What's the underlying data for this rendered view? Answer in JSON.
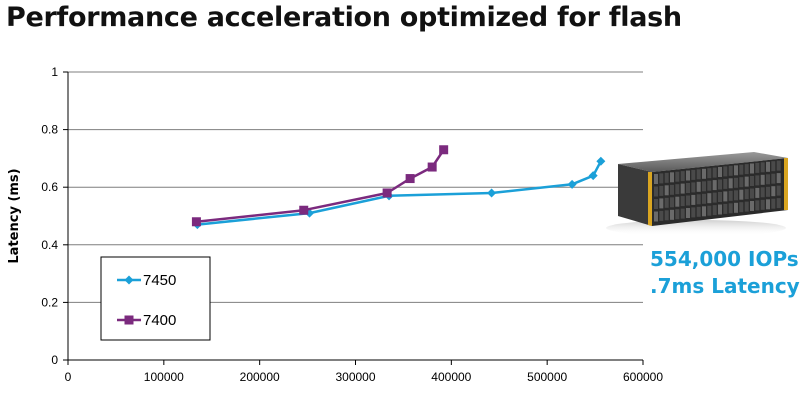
{
  "slide": {
    "title": "Performance acceleration optimized for flash"
  },
  "callout": {
    "line1": "554,000 IOPs",
    "line2": ".7ms Latency",
    "color": "#1ba0d8"
  },
  "image": {
    "description_icon": "storage-array-image"
  },
  "chart_data": {
    "type": "line",
    "title": "",
    "xlabel": "",
    "ylabel": "Latency (ms)",
    "xlim": [
      0,
      600000
    ],
    "ylim": [
      0,
      1
    ],
    "x_ticks": [
      "0",
      "100000",
      "200000",
      "300000",
      "400000",
      "500000",
      "600000"
    ],
    "y_ticks": [
      "0",
      "0.2",
      "0.4",
      "0.6",
      "0.8",
      "1"
    ],
    "grid": "horizontal",
    "legend": "bottom-left",
    "series": [
      {
        "name": "7450",
        "color": "#1ba0d8",
        "marker": "diamond",
        "points": [
          [
            135000,
            0.47
          ],
          [
            252000,
            0.51
          ],
          [
            335000,
            0.57
          ],
          [
            442000,
            0.58
          ],
          [
            526000,
            0.61
          ],
          [
            548000,
            0.64
          ],
          [
            556000,
            0.69
          ]
        ]
      },
      {
        "name": "7400",
        "color": "#7b2a7e",
        "marker": "square",
        "points": [
          [
            134000,
            0.48
          ],
          [
            246000,
            0.52
          ],
          [
            333000,
            0.58
          ],
          [
            357000,
            0.63
          ],
          [
            380000,
            0.67
          ],
          [
            392000,
            0.73
          ]
        ]
      }
    ]
  }
}
